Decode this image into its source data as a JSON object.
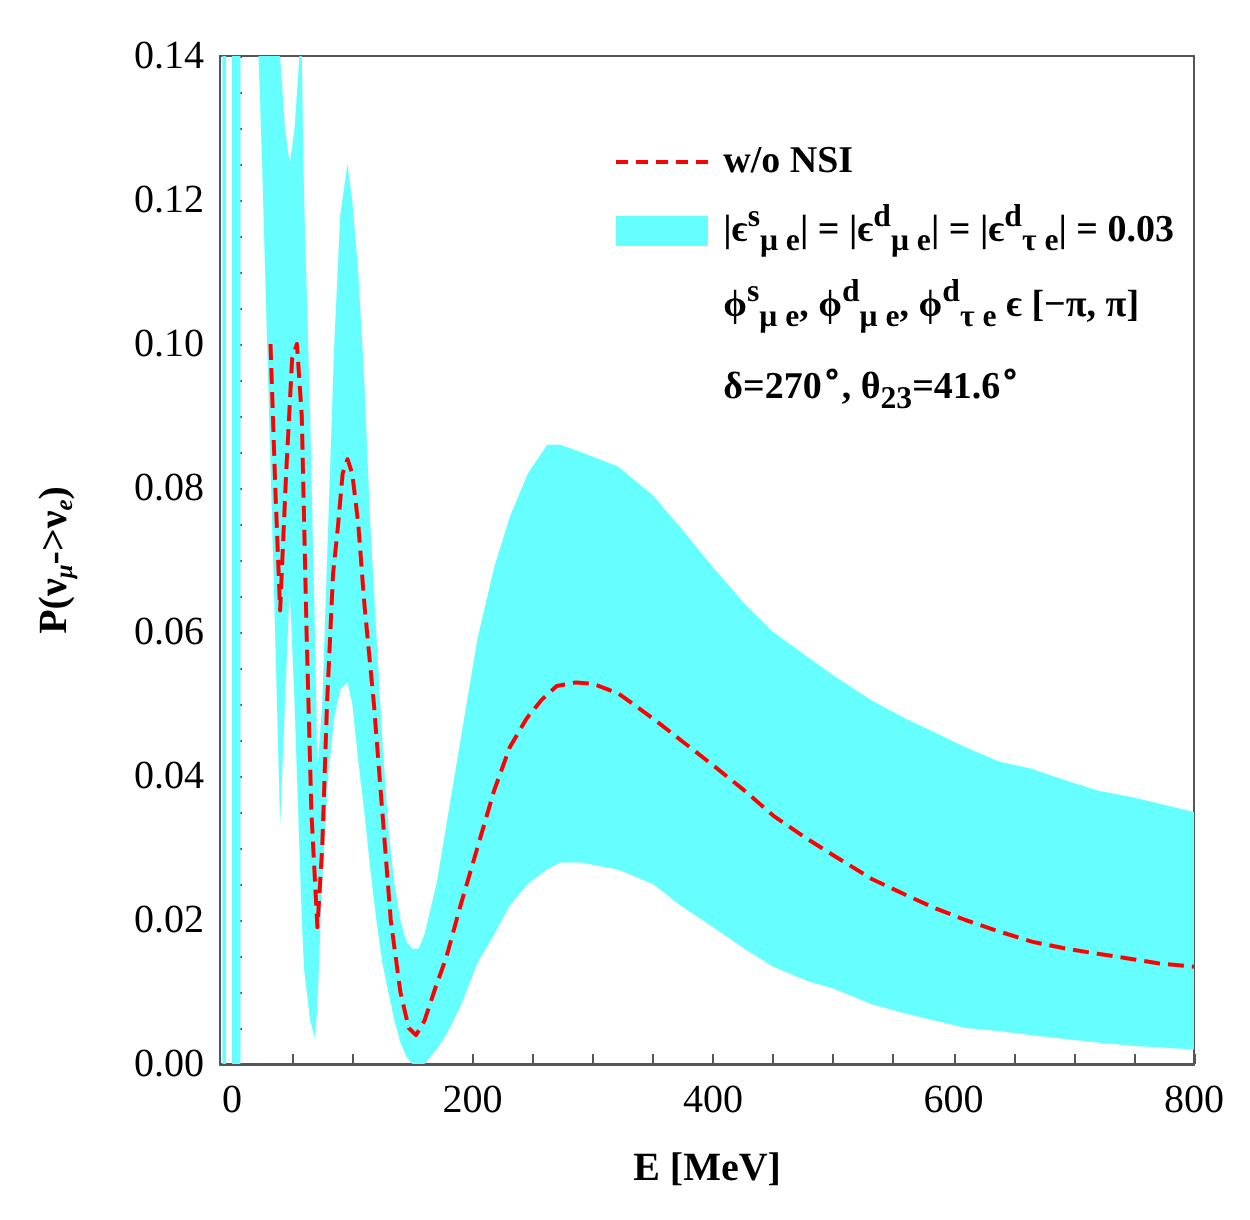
{
  "chart_data": {
    "type": "line",
    "xlabel": "E [MeV]",
    "ylabel": "P(ν$_{μ}$->ν$_{e}$)",
    "xlim": [
      -10,
      800
    ],
    "ylim": [
      0,
      0.14
    ],
    "xticks": [
      0,
      {
        "value": 50,
        "label": null
      },
      {
        "value": 100,
        "label": null
      },
      {
        "value": 150,
        "label": null
      },
      200,
      {
        "value": 250,
        "label": null
      },
      {
        "value": 300,
        "label": null
      },
      {
        "value": 350,
        "label": null
      },
      400,
      {
        "value": 450,
        "label": null
      },
      {
        "value": 500,
        "label": null
      },
      {
        "value": 550,
        "label": null
      },
      600,
      {
        "value": 650,
        "label": null
      },
      {
        "value": 700,
        "label": null
      },
      {
        "value": 750,
        "label": null
      },
      800
    ],
    "yticks": [
      {
        "value": 0,
        "label": "0.00"
      },
      {
        "value": 0.005,
        "label": null
      },
      {
        "value": 0.01,
        "label": null
      },
      {
        "value": 0.015,
        "label": null
      },
      {
        "value": 0.02,
        "label": "0.02"
      },
      {
        "value": 0.025,
        "label": null
      },
      {
        "value": 0.03,
        "label": null
      },
      {
        "value": 0.035,
        "label": null
      },
      {
        "value": 0.04,
        "label": "0.04"
      },
      {
        "value": 0.045,
        "label": null
      },
      {
        "value": 0.05,
        "label": null
      },
      {
        "value": 0.055,
        "label": null
      },
      {
        "value": 0.06,
        "label": "0.06"
      },
      {
        "value": 0.065,
        "label": null
      },
      {
        "value": 0.07,
        "label": null
      },
      {
        "value": 0.075,
        "label": null
      },
      {
        "value": 0.08,
        "label": "0.08"
      },
      {
        "value": 0.085,
        "label": null
      },
      {
        "value": 0.09,
        "label": null
      },
      {
        "value": 0.095,
        "label": null
      },
      {
        "value": 0.1,
        "label": "0.10"
      },
      {
        "value": 0.105,
        "label": null
      },
      {
        "value": 0.11,
        "label": null
      },
      {
        "value": 0.115,
        "label": null
      },
      {
        "value": 0.12,
        "label": "0.12"
      },
      {
        "value": 0.125,
        "label": null
      },
      {
        "value": 0.13,
        "label": null
      },
      {
        "value": 0.135,
        "label": null
      },
      {
        "value": 0.14,
        "label": "0.14"
      }
    ],
    "grid": false,
    "legend": "top right",
    "marker": "none",
    "series": [
      {
        "type": "area",
        "name": "|ϵ$^{s}$$_{μ e}$| = |ϵ$^{d}$$_{μ e}$| = |ϵ$^{d}$$_{τ e}$| = 0.03",
        "color": "#66ffff",
        "x": [
          -8,
          -5,
          -4,
          0,
          7,
          8,
          22,
          25,
          30,
          35,
          40,
          44,
          48,
          52,
          56,
          58,
          60,
          65,
          69,
          71,
          75,
          80,
          85,
          90,
          96,
          100,
          105,
          110,
          115,
          120,
          125,
          130,
          135,
          140,
          145,
          150,
          155,
          160,
          170,
          178,
          190,
          204,
          218,
          231,
          246,
          262,
          273,
          290,
          321,
          350,
          373,
          400,
          426,
          450,
          479,
          500,
          532,
          560,
          585,
          610,
          638,
          665,
          691,
          720,
          750,
          800
        ],
        "lower": [
          0,
          0,
          null,
          0,
          0,
          null,
          0.14,
          0.125,
          0.095,
          0.065,
          0.033,
          0.05,
          0.066,
          0.05,
          0.03,
          0.02,
          0.013,
          0.006,
          0.0035,
          0.008,
          0.025,
          0.04,
          0.048,
          0.052,
          0.053,
          0.05,
          0.042,
          0.035,
          0.027,
          0.02,
          0.014,
          0.01,
          0.006,
          0.003,
          0.001,
          0,
          0,
          0,
          0.002,
          0.004,
          0.008,
          0.014,
          0.018,
          0.022,
          0.025,
          0.027,
          0.028,
          0.028,
          0.027,
          0.025,
          0.022,
          0.019,
          0.016,
          0.0135,
          0.0115,
          0.0105,
          0.0083,
          0.007,
          0.006,
          0.005,
          0.0046,
          0.004,
          0.0035,
          0.003,
          0.0025,
          0.002
        ],
        "values": [
          null,
          null,
          null,
          null,
          null,
          null,
          null,
          null,
          null,
          null,
          null,
          null,
          null,
          null,
          null,
          null,
          null,
          null,
          null,
          null,
          null,
          null,
          null,
          null,
          null,
          null,
          null,
          null,
          null,
          null,
          null,
          null,
          null,
          null,
          null,
          null,
          null,
          null,
          null,
          null,
          null,
          null,
          null,
          null,
          null,
          null,
          null,
          null,
          null,
          null,
          null,
          null,
          null,
          null,
          null,
          null,
          null,
          null,
          null,
          null,
          null,
          null,
          null,
          null,
          null,
          null
        ],
        "upper": [
          0.14,
          0.14,
          null,
          0.14,
          0.14,
          null,
          0.14,
          0.14,
          0.14,
          0.14,
          0.14,
          0.13,
          0.125,
          0.13,
          0.14,
          0.14,
          0.12,
          0.09,
          0.06,
          0.041,
          0.05,
          0.075,
          0.1,
          0.118,
          0.125,
          0.12,
          0.11,
          0.095,
          0.075,
          0.06,
          0.045,
          0.033,
          0.025,
          0.02,
          0.017,
          0.016,
          0.016,
          0.018,
          0.025,
          0.033,
          0.045,
          0.059,
          0.069,
          0.076,
          0.082,
          0.086,
          0.086,
          0.085,
          0.083,
          0.079,
          0.0745,
          0.069,
          0.064,
          0.06,
          0.0565,
          0.054,
          0.0505,
          0.048,
          0.046,
          0.044,
          0.042,
          0.041,
          0.0395,
          0.038,
          0.037,
          0.035
        ]
      },
      {
        "name": "w/o NSI",
        "color": "#ff0000",
        "line_style": "dashed",
        "x": [
          32,
          36,
          40,
          45,
          50,
          54,
          58,
          62,
          66,
          71,
          75,
          79,
          84,
          88,
          92,
          96,
          100,
          105,
          110,
          118,
          125,
          132,
          140,
          147,
          153,
          160,
          170,
          178,
          190,
          204,
          218,
          231,
          245,
          257,
          270,
          286,
          300,
          321,
          350,
          373,
          400,
          426,
          450,
          479,
          500,
          532,
          560,
          585,
          610,
          638,
          665,
          691,
          720,
          744,
          770,
          800
        ],
        "values": [
          0.1,
          0.08,
          0.063,
          0.082,
          0.098,
          0.1,
          0.09,
          0.06,
          0.035,
          0.019,
          0.03,
          0.05,
          0.068,
          0.0745,
          0.082,
          0.084,
          0.082,
          0.075,
          0.064,
          0.05,
          0.035,
          0.02,
          0.01,
          0.005,
          0.004,
          0.006,
          0.011,
          0.0147,
          0.022,
          0.03,
          0.038,
          0.044,
          0.048,
          0.0505,
          0.0525,
          0.053,
          0.0528,
          0.0515,
          0.048,
          0.045,
          0.0415,
          0.038,
          0.0345,
          0.0312,
          0.029,
          0.0257,
          0.0235,
          0.0216,
          0.02,
          0.0184,
          0.017,
          0.0161,
          0.0153,
          0.0147,
          0.014,
          0.0135
        ]
      }
    ],
    "annotations": [
      "ϕ$^{s}$$_{μ e}$,  ϕ$^{d}$$_{μ e}$,  ϕ$^{d}$$_{τ e}$ ϵ [−π, π]",
      "δ=270$^{∘}$,  θ$_{23}$=41.6$^{∘}$"
    ]
  }
}
